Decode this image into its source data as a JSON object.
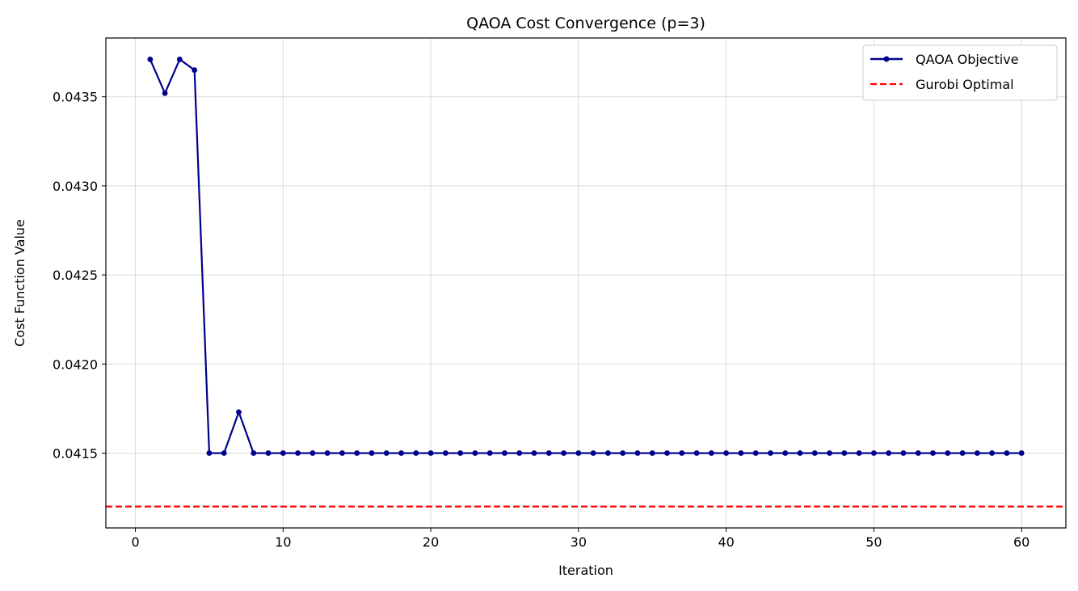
{
  "chart_data": {
    "type": "line",
    "title": "QAOA Cost Convergence (p=3)",
    "xlabel": "Iteration",
    "ylabel": "Cost Function Value",
    "xlim": [
      -2,
      63
    ],
    "ylim": [
      0.04108,
      0.04383
    ],
    "xticks": [
      0,
      10,
      20,
      30,
      40,
      50,
      60
    ],
    "yticks": [
      0.0415,
      0.042,
      0.0425,
      0.043,
      0.0435
    ],
    "ytick_labels": [
      "0.0415",
      "0.0420",
      "0.0425",
      "0.0430",
      "0.0435"
    ],
    "grid": true,
    "legend_placement": "top-right",
    "series": [
      {
        "name": "QAOA Objective",
        "color": "#00008b",
        "style": "solid-with-markers",
        "x": [
          1,
          2,
          3,
          4,
          5,
          6,
          7,
          8,
          9,
          10,
          11,
          12,
          13,
          14,
          15,
          16,
          17,
          18,
          19,
          20,
          21,
          22,
          23,
          24,
          25,
          26,
          27,
          28,
          29,
          30,
          31,
          32,
          33,
          34,
          35,
          36,
          37,
          38,
          39,
          40,
          41,
          42,
          43,
          44,
          45,
          46,
          47,
          48,
          49,
          50,
          51,
          52,
          53,
          54,
          55,
          56,
          57,
          58,
          59,
          60
        ],
        "y": [
          0.04371,
          0.04352,
          0.04371,
          0.04365,
          0.0415,
          0.0415,
          0.04173,
          0.0415,
          0.0415,
          0.0415,
          0.0415,
          0.0415,
          0.0415,
          0.0415,
          0.0415,
          0.0415,
          0.0415,
          0.0415,
          0.0415,
          0.0415,
          0.0415,
          0.0415,
          0.0415,
          0.0415,
          0.0415,
          0.0415,
          0.0415,
          0.0415,
          0.0415,
          0.0415,
          0.0415,
          0.0415,
          0.0415,
          0.0415,
          0.0415,
          0.0415,
          0.0415,
          0.0415,
          0.0415,
          0.0415,
          0.0415,
          0.0415,
          0.0415,
          0.0415,
          0.0415,
          0.0415,
          0.0415,
          0.0415,
          0.0415,
          0.0415,
          0.0415,
          0.0415,
          0.0415,
          0.0415,
          0.0415,
          0.0415,
          0.0415,
          0.0415,
          0.0415,
          0.0415
        ]
      },
      {
        "name": "Gurobi Optimal",
        "color": "#ff0000",
        "style": "dashed-hline",
        "y_value": 0.0412
      }
    ]
  }
}
